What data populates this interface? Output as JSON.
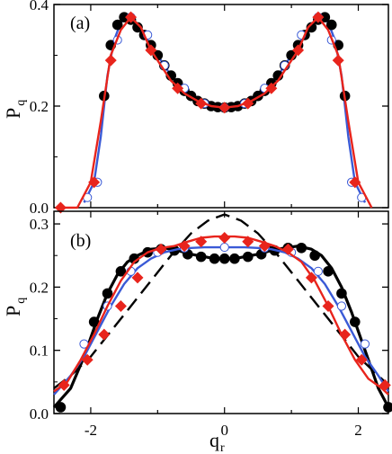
{
  "chart_data": [
    {
      "panel": "(a)",
      "type": "line",
      "xlim": [
        -2.55,
        2.45
      ],
      "ylim": [
        0.0,
        0.4
      ],
      "yticks": [
        0.0,
        0.2,
        0.4
      ],
      "ytick_labels": [
        "0.0",
        "0.2",
        "0.4"
      ],
      "ylabel": "P",
      "ylabel_sub": "q",
      "grid": false,
      "series": [
        {
          "style": "blue-line",
          "color": "#3a5ad6",
          "x": [
            -2.1,
            -1.95,
            -1.85,
            -1.75,
            -1.65,
            -1.55,
            -1.45,
            -1.3,
            -1.15,
            -1.0,
            -0.8,
            -0.6,
            -0.4,
            -0.2,
            0.0,
            0.2,
            0.4,
            0.6,
            0.8,
            1.0,
            1.15,
            1.3,
            1.45,
            1.55,
            1.65,
            1.75,
            1.85,
            1.95,
            2.1
          ],
          "y": [
            0.01,
            0.05,
            0.14,
            0.26,
            0.33,
            0.365,
            0.375,
            0.36,
            0.33,
            0.3,
            0.26,
            0.23,
            0.21,
            0.2,
            0.197,
            0.2,
            0.21,
            0.23,
            0.26,
            0.3,
            0.33,
            0.36,
            0.375,
            0.365,
            0.33,
            0.26,
            0.14,
            0.05,
            0.01
          ]
        },
        {
          "style": "black-dots",
          "color": "#000000",
          "x": [
            -1.8,
            -1.7,
            -1.6,
            -1.5,
            -1.4,
            -1.3,
            -1.2,
            -1.1,
            -1.0,
            -0.9,
            -0.8,
            -0.7,
            -0.6,
            -0.5,
            -0.4,
            -0.3,
            -0.2,
            -0.1,
            0.0,
            0.1,
            0.2,
            0.3,
            0.4,
            0.5,
            0.6,
            0.7,
            0.8,
            0.9,
            1.0,
            1.1,
            1.2,
            1.3,
            1.4,
            1.5,
            1.6,
            1.7,
            1.8
          ],
          "y": [
            0.22,
            0.32,
            0.36,
            0.375,
            0.37,
            0.355,
            0.34,
            0.32,
            0.3,
            0.28,
            0.26,
            0.245,
            0.23,
            0.22,
            0.21,
            0.205,
            0.2,
            0.198,
            0.197,
            0.198,
            0.2,
            0.205,
            0.21,
            0.22,
            0.23,
            0.245,
            0.26,
            0.28,
            0.3,
            0.32,
            0.34,
            0.355,
            0.37,
            0.375,
            0.36,
            0.32,
            0.22
          ]
        },
        {
          "style": "open-circles",
          "color": "#3a5ad6",
          "x": [
            -1.9,
            -1.6,
            -1.4,
            -1.15,
            -0.9,
            -0.6,
            -0.3,
            0.0,
            0.3,
            0.6,
            0.9,
            1.15,
            1.4,
            1.6,
            1.9
          ],
          "y": [
            0.05,
            0.33,
            0.375,
            0.34,
            0.28,
            0.235,
            0.205,
            0.197,
            0.205,
            0.235,
            0.28,
            0.34,
            0.375,
            0.33,
            0.05
          ],
          "z": [
            -2.05,
            2.05
          ],
          "z_y": [
            0.02,
            0.02
          ]
        },
        {
          "style": "red-diamonds-line",
          "color": "#e8241c",
          "x": [
            -2.45,
            -2.2,
            -2.0,
            -1.85,
            -1.7,
            -1.55,
            -1.4,
            -1.25,
            -1.1,
            -0.95,
            -0.8,
            -0.6,
            -0.4,
            -0.2,
            0.0,
            0.2,
            0.4,
            0.6,
            0.8,
            0.95,
            1.1,
            1.25,
            1.4,
            1.55,
            1.7,
            1.85,
            2.0,
            2.2
          ],
          "y": [
            0.0,
            0.0,
            0.05,
            0.17,
            0.3,
            0.35,
            0.375,
            0.355,
            0.31,
            0.28,
            0.25,
            0.225,
            0.21,
            0.2,
            0.197,
            0.2,
            0.21,
            0.225,
            0.25,
            0.28,
            0.31,
            0.355,
            0.375,
            0.35,
            0.3,
            0.17,
            0.05,
            0.0
          ],
          "markers_x": [
            -2.45,
            -1.95,
            -1.7,
            -1.4,
            -1.1,
            -0.7,
            -0.35,
            0.0,
            0.35,
            0.7,
            1.1,
            1.4,
            1.7,
            1.95
          ],
          "markers_y": [
            0.0,
            0.05,
            0.29,
            0.375,
            0.31,
            0.235,
            0.205,
            0.197,
            0.205,
            0.235,
            0.31,
            0.375,
            0.29,
            0.05
          ]
        }
      ]
    },
    {
      "panel": "(b)",
      "type": "line",
      "xlim": [
        -2.55,
        2.45
      ],
      "ylim": [
        0.0,
        0.32
      ],
      "yticks": [
        0.0,
        0.1,
        0.2,
        0.3
      ],
      "ytick_labels": [
        "0.0",
        "0.1",
        "0.2",
        "0.3"
      ],
      "xticks": [
        -2,
        0,
        2
      ],
      "xtick_labels": [
        "-2",
        "0",
        "2"
      ],
      "xlabel": "q",
      "xlabel_sub": "r",
      "ylabel": "P",
      "ylabel_sub": "q",
      "grid": false,
      "series": [
        {
          "style": "dashed-black",
          "color": "#000000",
          "x": [
            -2.55,
            -2.3,
            -2.0,
            -1.7,
            -1.4,
            -1.1,
            -0.8,
            -0.5,
            -0.25,
            0.0,
            0.25,
            0.5,
            0.8,
            1.1,
            1.4,
            1.7,
            2.0,
            2.3,
            2.45
          ],
          "y": [
            0.04,
            0.06,
            0.09,
            0.13,
            0.17,
            0.21,
            0.25,
            0.285,
            0.305,
            0.315,
            0.305,
            0.285,
            0.25,
            0.21,
            0.17,
            0.13,
            0.09,
            0.06,
            0.045
          ]
        },
        {
          "style": "black-thick-line",
          "color": "#000000",
          "x": [
            -2.55,
            -2.3,
            -2.1,
            -1.9,
            -1.75,
            -1.6,
            -1.45,
            -1.3,
            -1.1,
            -0.9,
            -0.7,
            -0.5,
            -0.3,
            -0.15,
            0.0,
            0.15,
            0.3,
            0.5,
            0.7,
            0.9,
            1.1,
            1.3,
            1.45,
            1.6,
            1.75,
            1.9,
            2.1,
            2.3,
            2.45
          ],
          "y": [
            0.01,
            0.04,
            0.09,
            0.15,
            0.19,
            0.22,
            0.24,
            0.25,
            0.26,
            0.262,
            0.258,
            0.252,
            0.248,
            0.245,
            0.245,
            0.245,
            0.248,
            0.252,
            0.258,
            0.262,
            0.265,
            0.26,
            0.25,
            0.23,
            0.2,
            0.16,
            0.1,
            0.04,
            0.01
          ]
        },
        {
          "style": "black-dots",
          "color": "#000000",
          "x": [
            -2.45,
            -1.95,
            -1.75,
            -1.55,
            -1.35,
            -1.15,
            -0.95,
            -0.75,
            -0.55,
            -0.35,
            -0.15,
            0.0,
            0.15,
            0.35,
            0.55,
            0.75,
            0.95,
            1.15,
            1.35,
            1.55,
            1.75,
            1.95,
            2.45
          ],
          "y": [
            0.01,
            0.145,
            0.19,
            0.225,
            0.245,
            0.255,
            0.26,
            0.258,
            0.252,
            0.248,
            0.245,
            0.245,
            0.245,
            0.248,
            0.252,
            0.258,
            0.262,
            0.262,
            0.25,
            0.225,
            0.19,
            0.145,
            0.01
          ]
        },
        {
          "style": "blue-line",
          "color": "#3a5ad6",
          "x": [
            -2.55,
            -2.3,
            -2.1,
            -1.9,
            -1.7,
            -1.5,
            -1.3,
            -1.1,
            -0.9,
            -0.7,
            -0.5,
            -0.3,
            0.0,
            0.3,
            0.5,
            0.7,
            0.9,
            1.1,
            1.3,
            1.5,
            1.7,
            1.9,
            2.1,
            2.3,
            2.45
          ],
          "y": [
            0.03,
            0.06,
            0.09,
            0.13,
            0.17,
            0.205,
            0.23,
            0.245,
            0.255,
            0.26,
            0.262,
            0.263,
            0.263,
            0.263,
            0.262,
            0.26,
            0.255,
            0.245,
            0.23,
            0.205,
            0.17,
            0.13,
            0.09,
            0.06,
            0.035
          ]
        },
        {
          "style": "open-circles",
          "color": "#3a5ad6",
          "x": [
            -2.1,
            -1.75,
            -1.4,
            -1.0,
            -0.6,
            0.0,
            0.6,
            1.0,
            1.4,
            1.75,
            2.1
          ],
          "y": [
            0.11,
            0.17,
            0.225,
            0.255,
            0.262,
            0.263,
            0.262,
            0.255,
            0.225,
            0.17,
            0.11
          ]
        },
        {
          "style": "red-diamonds-line",
          "color": "#e8241c",
          "x": [
            -2.55,
            -2.35,
            -2.15,
            -1.95,
            -1.75,
            -1.55,
            -1.35,
            -1.15,
            -0.95,
            -0.75,
            -0.55,
            -0.35,
            -0.15,
            0.0,
            0.15,
            0.35,
            0.55,
            0.75,
            0.95,
            1.15,
            1.35,
            1.55,
            1.75,
            1.95,
            2.15,
            2.35,
            2.45
          ],
          "y": [
            0.035,
            0.05,
            0.085,
            0.125,
            0.17,
            0.21,
            0.24,
            0.255,
            0.262,
            0.265,
            0.272,
            0.278,
            0.28,
            0.28,
            0.28,
            0.278,
            0.272,
            0.265,
            0.255,
            0.24,
            0.21,
            0.17,
            0.125,
            0.085,
            0.055,
            0.04,
            0.03
          ],
          "markers_x": [
            -2.4,
            -2.05,
            -1.8,
            -1.55,
            -1.3,
            -0.95,
            -0.6,
            -0.35,
            0.0,
            0.35,
            0.6,
            0.95,
            1.3,
            1.55,
            1.8,
            2.05,
            2.4
          ],
          "markers_y": [
            0.045,
            0.085,
            0.125,
            0.17,
            0.215,
            0.26,
            0.265,
            0.272,
            0.278,
            0.272,
            0.265,
            0.26,
            0.215,
            0.17,
            0.125,
            0.085,
            0.045
          ]
        }
      ]
    }
  ]
}
